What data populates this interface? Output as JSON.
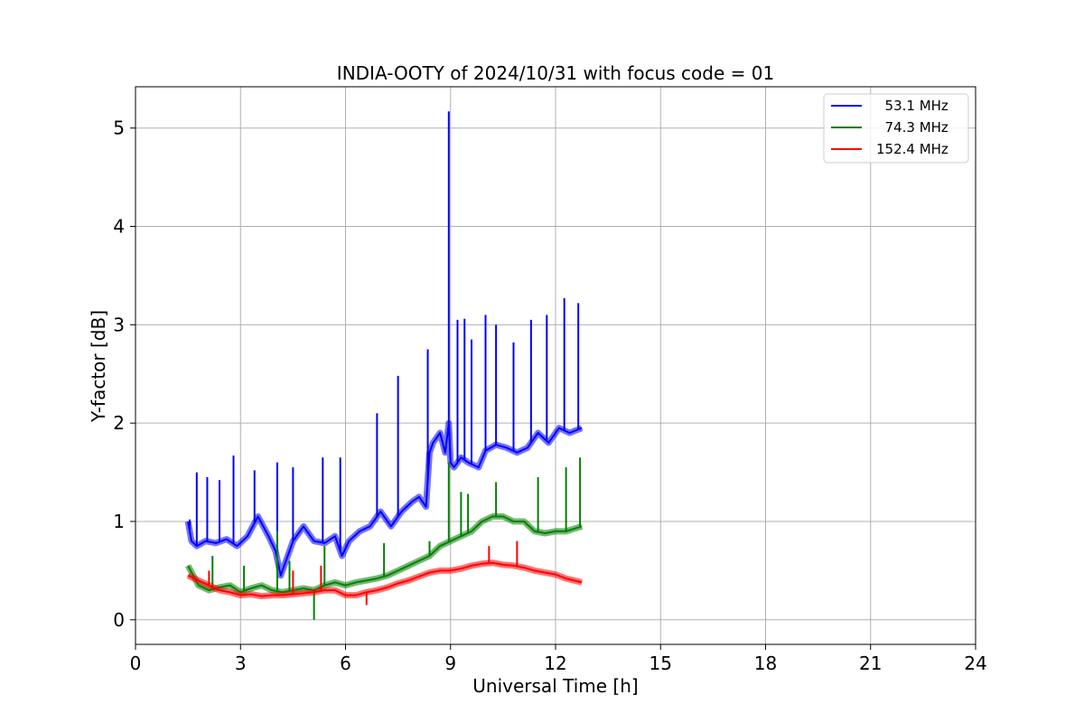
{
  "chart_data": {
    "type": "line",
    "title": "INDIA-OOTY of 2024/10/31 with focus code = 01",
    "xlabel": "Universal Time [h]",
    "ylabel": "Y-factor [dB]",
    "xlim": [
      0,
      24
    ],
    "ylim": [
      -0.25,
      5.42
    ],
    "xticks": [
      0,
      3,
      6,
      9,
      12,
      15,
      18,
      21,
      24
    ],
    "yticks": [
      0,
      1,
      2,
      3,
      4,
      5
    ],
    "grid": true,
    "legend_position": "top-right",
    "series": [
      {
        "name": "  53.1 MHz",
        "color": "#0000ff",
        "x": [
          1.5,
          1.6,
          1.75,
          2.0,
          2.3,
          2.6,
          2.9,
          3.2,
          3.5,
          3.8,
          4.0,
          4.15,
          4.3,
          4.5,
          4.8,
          5.1,
          5.4,
          5.7,
          5.9,
          6.1,
          6.4,
          6.7,
          7.0,
          7.3,
          7.6,
          7.9,
          8.1,
          8.3,
          8.4,
          8.5,
          8.7,
          8.85,
          8.95,
          9.0,
          9.1,
          9.3,
          9.5,
          9.8,
          10.0,
          10.3,
          10.6,
          10.9,
          11.2,
          11.5,
          11.8,
          12.1,
          12.4,
          12.75
        ],
        "y": [
          1.0,
          0.8,
          0.75,
          0.8,
          0.78,
          0.82,
          0.75,
          0.85,
          1.05,
          0.85,
          0.7,
          0.45,
          0.6,
          0.8,
          0.95,
          0.8,
          0.78,
          0.85,
          0.65,
          0.8,
          0.9,
          0.95,
          1.1,
          0.95,
          1.1,
          1.2,
          1.25,
          1.15,
          1.7,
          1.8,
          1.9,
          1.7,
          2.0,
          1.6,
          1.55,
          1.65,
          1.6,
          1.55,
          1.72,
          1.78,
          1.75,
          1.7,
          1.75,
          1.9,
          1.8,
          1.95,
          1.9,
          1.95
        ],
        "spikes": [
          [
            1.55,
            1.02
          ],
          [
            1.75,
            1.5
          ],
          [
            2.05,
            1.45
          ],
          [
            2.4,
            1.42
          ],
          [
            2.8,
            1.67
          ],
          [
            3.4,
            1.52
          ],
          [
            4.05,
            1.6
          ],
          [
            4.5,
            1.55
          ],
          [
            5.35,
            1.65
          ],
          [
            5.85,
            1.65
          ],
          [
            6.9,
            2.1
          ],
          [
            7.5,
            2.48
          ],
          [
            8.35,
            2.75
          ],
          [
            8.95,
            5.17
          ],
          [
            9.2,
            3.05
          ],
          [
            9.4,
            3.06
          ],
          [
            9.6,
            2.85
          ],
          [
            10.0,
            3.1
          ],
          [
            10.3,
            3.0
          ],
          [
            10.8,
            2.82
          ],
          [
            11.3,
            3.05
          ],
          [
            11.75,
            3.1
          ],
          [
            12.25,
            3.27
          ],
          [
            12.65,
            3.22
          ]
        ]
      },
      {
        "name": "  74.3 MHz",
        "color": "#008000",
        "x": [
          1.5,
          1.8,
          2.1,
          2.4,
          2.7,
          3.0,
          3.3,
          3.6,
          3.9,
          4.2,
          4.5,
          4.8,
          5.1,
          5.4,
          5.7,
          6.0,
          6.3,
          6.6,
          6.9,
          7.2,
          7.5,
          7.8,
          8.1,
          8.4,
          8.7,
          9.0,
          9.3,
          9.6,
          9.9,
          10.2,
          10.5,
          10.8,
          11.1,
          11.4,
          11.7,
          12.0,
          12.3,
          12.75
        ],
        "y": [
          0.55,
          0.35,
          0.3,
          0.33,
          0.35,
          0.28,
          0.32,
          0.35,
          0.3,
          0.28,
          0.3,
          0.32,
          0.3,
          0.35,
          0.38,
          0.35,
          0.38,
          0.4,
          0.42,
          0.45,
          0.5,
          0.55,
          0.6,
          0.65,
          0.75,
          0.8,
          0.85,
          0.9,
          1.0,
          1.05,
          1.05,
          1.0,
          1.0,
          0.9,
          0.88,
          0.9,
          0.9,
          0.95
        ],
        "spikes": [
          [
            2.2,
            0.65
          ],
          [
            3.1,
            0.55
          ],
          [
            4.05,
            0.9
          ],
          [
            4.4,
            0.6
          ],
          [
            5.1,
            0.0
          ],
          [
            5.4,
            0.75
          ],
          [
            7.1,
            0.78
          ],
          [
            8.4,
            0.8
          ],
          [
            8.95,
            1.6
          ],
          [
            9.3,
            1.3
          ],
          [
            9.5,
            1.28
          ],
          [
            10.3,
            1.4
          ],
          [
            11.5,
            1.45
          ],
          [
            12.3,
            1.55
          ],
          [
            12.7,
            1.65
          ]
        ]
      },
      {
        "name": "152.4 MHz",
        "color": "#ff0000",
        "x": [
          1.5,
          1.8,
          2.1,
          2.4,
          2.7,
          3.0,
          3.3,
          3.6,
          3.9,
          4.2,
          4.5,
          4.8,
          5.1,
          5.4,
          5.7,
          6.0,
          6.3,
          6.6,
          6.9,
          7.2,
          7.5,
          7.8,
          8.1,
          8.4,
          8.7,
          9.0,
          9.3,
          9.6,
          9.9,
          10.2,
          10.5,
          10.8,
          11.1,
          11.4,
          11.7,
          12.0,
          12.3,
          12.75
        ],
        "y": [
          0.45,
          0.4,
          0.35,
          0.3,
          0.28,
          0.25,
          0.26,
          0.24,
          0.25,
          0.25,
          0.26,
          0.27,
          0.28,
          0.3,
          0.3,
          0.25,
          0.25,
          0.28,
          0.3,
          0.33,
          0.37,
          0.4,
          0.44,
          0.48,
          0.5,
          0.5,
          0.52,
          0.55,
          0.57,
          0.58,
          0.56,
          0.55,
          0.53,
          0.5,
          0.48,
          0.46,
          0.42,
          0.38
        ],
        "spikes": [
          [
            2.1,
            0.5
          ],
          [
            4.5,
            0.5
          ],
          [
            5.3,
            0.55
          ],
          [
            6.6,
            0.15
          ],
          [
            10.1,
            0.75
          ],
          [
            10.9,
            0.8
          ]
        ]
      }
    ]
  }
}
